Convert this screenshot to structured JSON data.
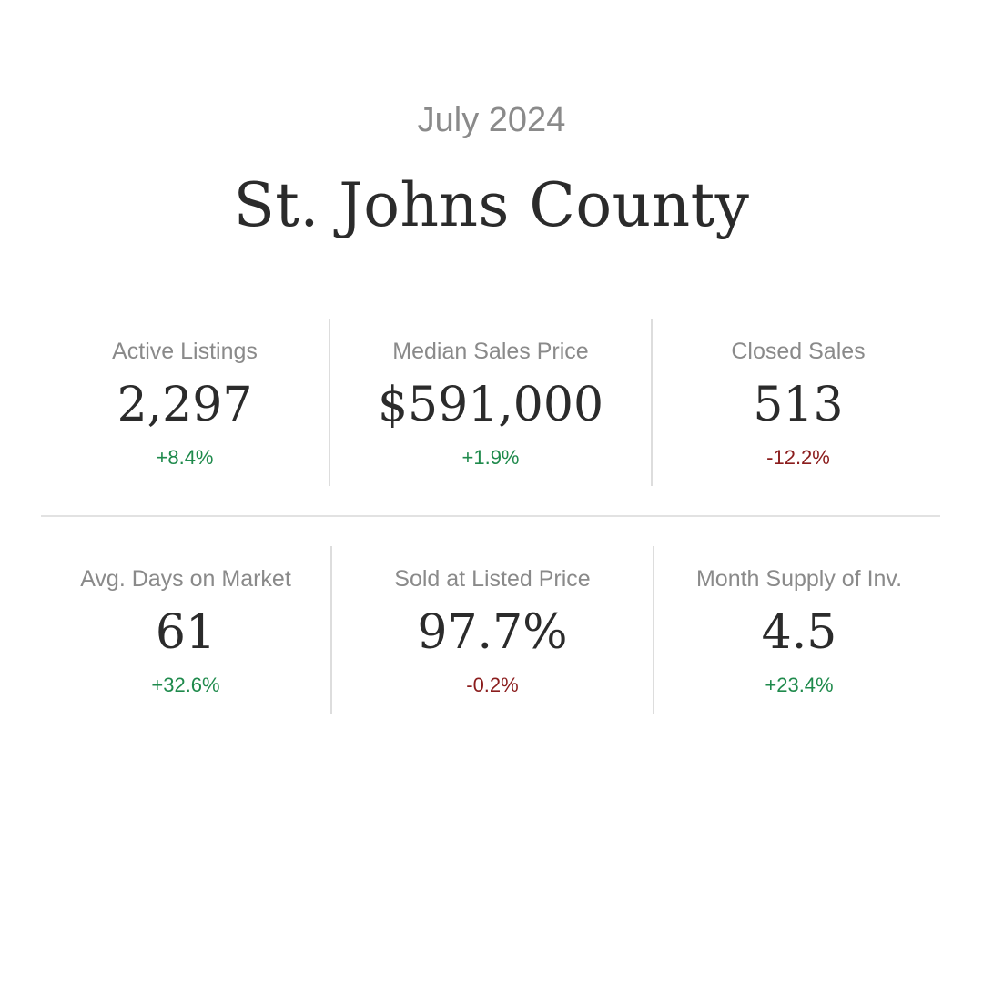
{
  "header": {
    "period": "July 2024",
    "region": "St. Johns County"
  },
  "colors": {
    "positive": "#1f8a4c",
    "negative": "#8b1d1d"
  },
  "stats": {
    "active_listings": {
      "label": "Active Listings",
      "value": "2,297",
      "change": "+8.4%",
      "trend": "up"
    },
    "median_sales_price": {
      "label": "Median Sales Price",
      "value": "$591,000",
      "change": "+1.9%",
      "trend": "up"
    },
    "closed_sales": {
      "label": "Closed Sales",
      "value": "513",
      "change": "-12.2%",
      "trend": "down"
    },
    "avg_days_on_market": {
      "label": "Avg. Days on Market",
      "value": "61",
      "change": "+32.6%",
      "trend": "up"
    },
    "sold_at_listed_price": {
      "label": "Sold at Listed Price",
      "value": "97.7%",
      "change": "-0.2%",
      "trend": "down"
    },
    "month_supply": {
      "label": "Month Supply of Inv.",
      "value": "4.5",
      "change": "+23.4%",
      "trend": "up"
    }
  }
}
